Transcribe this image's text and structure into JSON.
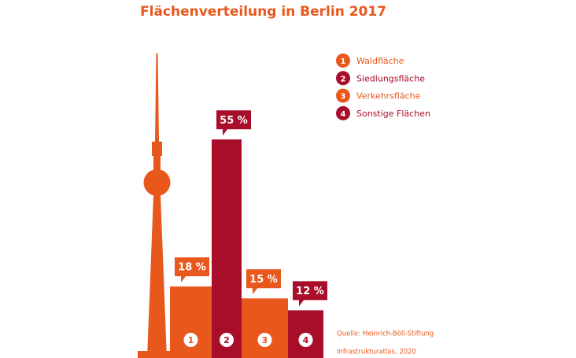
{
  "chart_data": {
    "type": "bar",
    "title": "Flächenverteilung in Berlin 2017",
    "categories": [
      "Waldfläche",
      "Siedlungsfläche",
      "Verkehrsfläche",
      "Sonstige Flächen"
    ],
    "markers": [
      "1",
      "2",
      "3",
      "4"
    ],
    "values": [
      18,
      55,
      15,
      12
    ],
    "value_labels": [
      "18 %",
      "55 %",
      "15 %",
      "12 %"
    ],
    "colors": [
      "#e8581c",
      "#a80d2a",
      "#e8581c",
      "#a80d2a"
    ],
    "source": [
      "Quelle: Heinrich-Böll-Stiftung",
      "Infrastrukturatlas, 2020"
    ]
  }
}
